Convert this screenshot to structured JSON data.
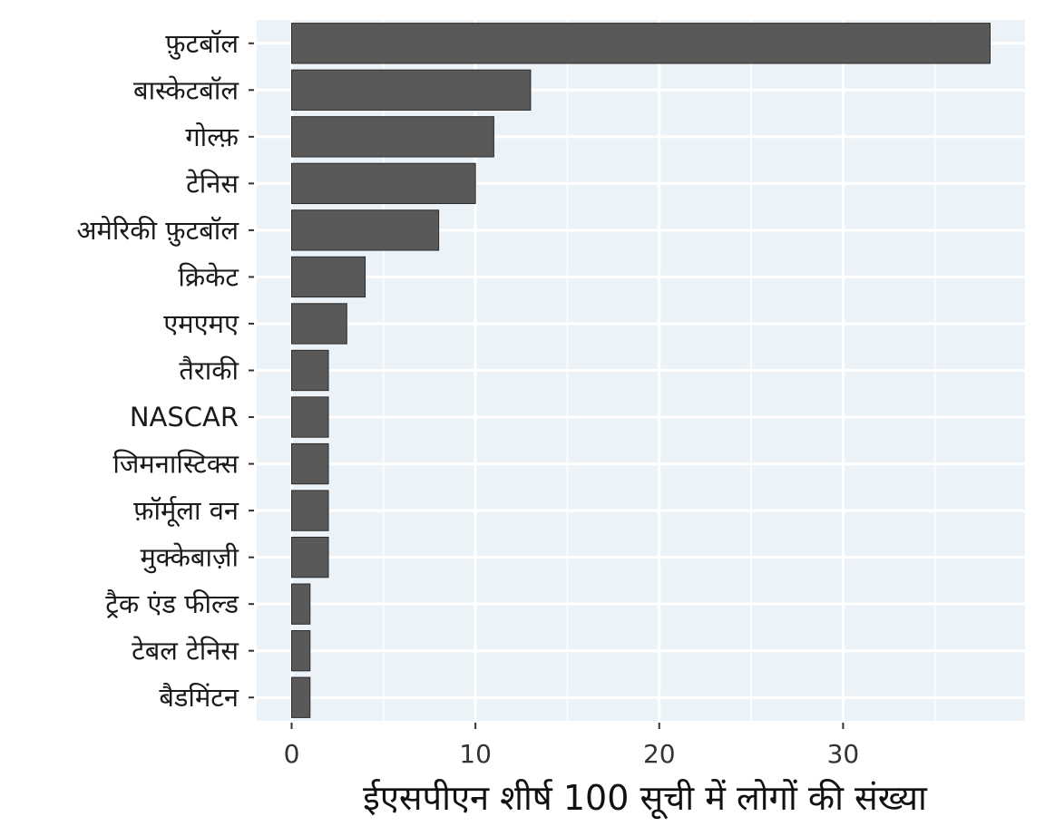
{
  "chart_data": {
    "type": "bar",
    "orientation": "horizontal",
    "categories": [
      "फ़ुटबॉल",
      "बास्केटबॉल",
      "गोल्फ़",
      "टेनिस",
      "अमेरिकी फ़ुटबॉल",
      "क्रिकेट",
      "एमएमए",
      "तैराकी",
      "NASCAR",
      "जिमनास्टिक्स",
      "फ़ॉर्मूला वन",
      "मुक्केबाज़ी",
      "ट्रैक एंड फील्ड",
      "टेबल टेनिस",
      "बैडमिंटन"
    ],
    "values": [
      38,
      13,
      11,
      10,
      8,
      4,
      3,
      2,
      2,
      2,
      2,
      2,
      1,
      1,
      1
    ],
    "xlabel": "ईएसपीएन शीर्ष 100 सूची में लोगों की संख्या",
    "ylabel": "",
    "xlim": [
      -1.9,
      39.9
    ],
    "xticks": [
      0,
      10,
      20,
      30
    ],
    "grid": true,
    "colors": {
      "panel_background": "#ebf2f8",
      "grid": "#ffffff",
      "bar_fill": "#595959",
      "bar_stroke": "#2b2b2b"
    }
  }
}
